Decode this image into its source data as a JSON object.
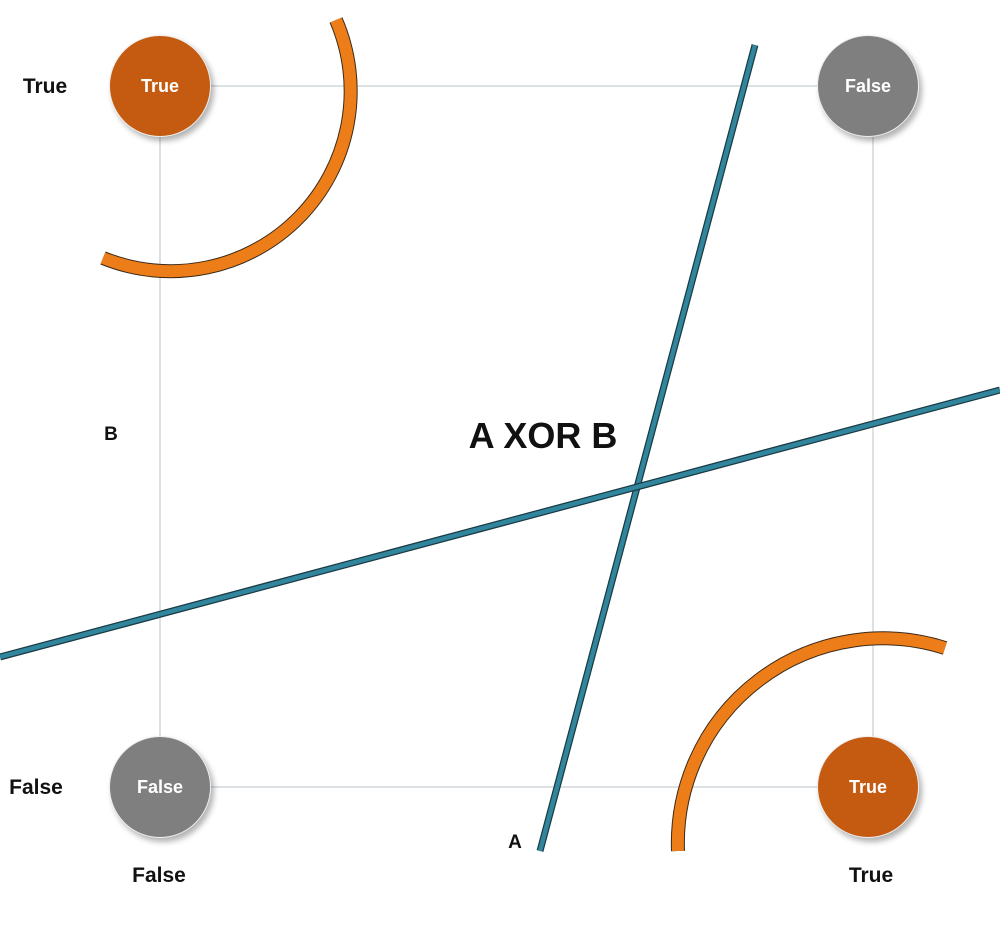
{
  "title": "A XOR B",
  "axis_a_label": "A",
  "axis_b_label": "B",
  "row_labels": {
    "top": "True",
    "bottom": "False"
  },
  "col_labels": {
    "left": "False",
    "right": "True"
  },
  "nodes": {
    "top_left": {
      "text": "True",
      "color": "#c55a11"
    },
    "top_right": {
      "text": "False",
      "color": "#7f7f7f"
    },
    "bottom_left": {
      "text": "False",
      "color": "#7f7f7f"
    },
    "bottom_right": {
      "text": "True",
      "color": "#c55a11"
    }
  },
  "colors": {
    "separator": "#31859c",
    "arc": "#ed7d18",
    "grid": "#d0d7dc"
  }
}
